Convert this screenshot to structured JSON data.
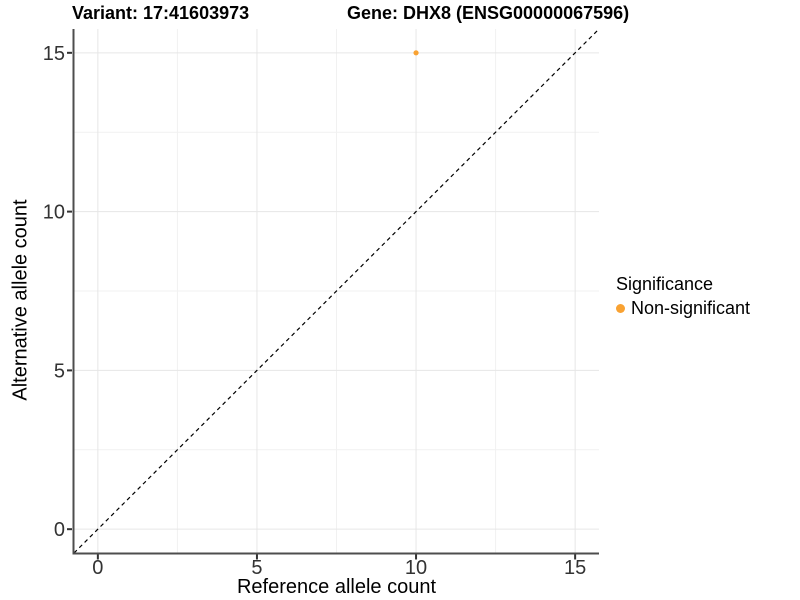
{
  "titles": {
    "variant": "Variant: 17:41603973",
    "gene": "Gene: DHX8 (ENSG00000067596)"
  },
  "axes": {
    "x_label": "Reference allele count",
    "y_label": "Alternative allele count"
  },
  "legend": {
    "title": "Significance",
    "items": [
      {
        "label": "Non-significant",
        "color": "#F9A232"
      }
    ]
  },
  "colors": {
    "background": "#ffffff",
    "grid_major": "#e6e6e6",
    "grid_minor": "#f1f1f1",
    "axis_line": "#4d4d4d",
    "tick_mark": "#333333",
    "tick_text": "#333333",
    "title_text": "#000000",
    "reference_line": "#000000",
    "point": "#F9A232"
  },
  "chart_data": {
    "type": "scatter",
    "title_left": "Variant: 17:41603973",
    "title_right": "Gene: DHX8 (ENSG00000067596)",
    "xlabel": "Reference allele count",
    "ylabel": "Alternative allele count",
    "xlim": [
      -0.75,
      15.75
    ],
    "ylim": [
      -0.75,
      15.75
    ],
    "x_ticks": [
      0,
      5,
      10,
      15
    ],
    "y_ticks": [
      0,
      5,
      10,
      15
    ],
    "x_minor_ticks": [
      2.5,
      7.5,
      12.5
    ],
    "y_minor_ticks": [
      2.5,
      7.5,
      12.5
    ],
    "grid": "major+minor",
    "series": [
      {
        "name": "Non-significant",
        "color": "#F9A232",
        "points": [
          {
            "x": 10,
            "y": 15
          }
        ]
      }
    ],
    "reference_line": {
      "type": "identity",
      "slope": 1,
      "intercept": 0,
      "style": "dashed",
      "color": "#000000"
    },
    "legend_title": "Significance",
    "legend_position": "right"
  }
}
